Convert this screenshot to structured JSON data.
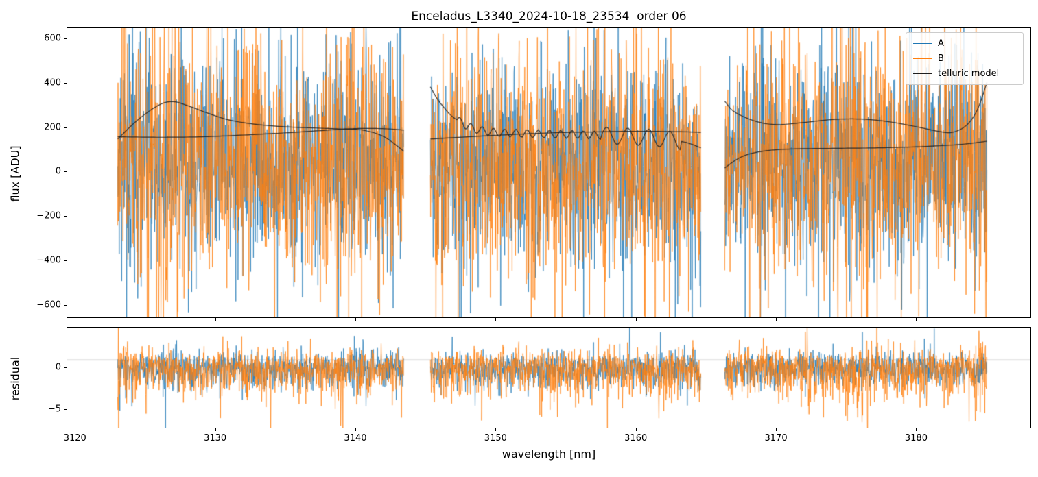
{
  "title": "Enceladus_L3340_2024-10-18_23534  order 06",
  "chart_data": {
    "type": "line",
    "title": "Enceladus_L3340_2024-10-18_23534  order 06",
    "xlabel": "wavelength [nm]",
    "xlim": [
      3119.4,
      3188.2
    ],
    "xticks": [
      3120,
      3130,
      3140,
      3150,
      3160,
      3170,
      3180
    ],
    "segments": [
      [
        3123.0,
        3143.4
      ],
      [
        3145.3,
        3164.6
      ],
      [
        3166.3,
        3185.0
      ]
    ],
    "colors": {
      "A": "#1f77b4",
      "B": "#ff7f0e",
      "telluric": "#1f1f1f",
      "refline": "#999999"
    },
    "legend": [
      {
        "label": "A",
        "color": "A"
      },
      {
        "label": "B",
        "color": "B"
      },
      {
        "label": "telluric model",
        "color": "telluric"
      }
    ],
    "legend_position": "upper right",
    "grid": false,
    "panels": {
      "flux": {
        "ylabel": "flux [ADU]",
        "ylim": [
          -660,
          650
        ],
        "yticks": [
          600,
          400,
          200,
          0,
          -200,
          -400,
          -600
        ],
        "noise": {
          "A": {
            "mean": 45,
            "std": 225,
            "tail_p": 0.06,
            "tail_mult": 2.1,
            "skew": 0,
            "seed": 12345
          },
          "B": {
            "mean": 45,
            "std": 248,
            "tail_p": 0.07,
            "tail_mult": 2.2,
            "skew": 0,
            "seed": 67890
          }
        },
        "hotspots": [
          {
            "x": 3126.0,
            "w": 1.2,
            "mult": 1.5,
            "series": "B"
          },
          {
            "x": 3140.0,
            "w": 0.8,
            "mult": 1.5,
            "series": "B"
          },
          {
            "x": 3175.8,
            "w": 0.9,
            "mult": 1.7,
            "series": "B"
          },
          {
            "x": 3184.5,
            "w": 0.6,
            "mult": 1.8,
            "series": "B"
          },
          {
            "x": 3175.3,
            "w": 0.7,
            "mult": 1.6,
            "series": "A"
          },
          {
            "x": 3124.0,
            "w": 0.8,
            "mult": 1.4,
            "series": "A"
          }
        ]
      },
      "residual": {
        "ylabel": "residual",
        "ylim": [
          -7.3,
          4.9
        ],
        "yticks": [
          0,
          -5
        ],
        "refline": 1.0,
        "noise": {
          "A": {
            "mean": 0,
            "std": 1.0,
            "tail_p": 0.05,
            "tail_mult": 2.4,
            "skew": -0.1,
            "seed": 111
          },
          "B": {
            "mean": 0,
            "std": 1.35,
            "tail_p": 0.05,
            "tail_mult": 2.5,
            "skew": -0.25,
            "seed": 222
          }
        },
        "hotspots": [
          {
            "x": 3175.9,
            "w": 0.9,
            "mult": 2.6,
            "series": "B"
          },
          {
            "x": 3123.3,
            "w": 0.5,
            "mult": 1.8,
            "series": "B"
          },
          {
            "x": 3184.6,
            "w": 0.5,
            "mult": 2.0,
            "series": "B"
          },
          {
            "x": 3140.0,
            "w": 0.7,
            "mult": 1.6,
            "series": "A"
          },
          {
            "x": 3127.0,
            "w": 1.0,
            "mult": 1.4,
            "series": "A"
          }
        ]
      }
    },
    "telluric_model": {
      "curves": [
        {
          "points": [
            [
              3123.0,
              150
            ],
            [
              3124.5,
              240
            ],
            [
              3126.0,
              305
            ],
            [
              3127.0,
              318
            ],
            [
              3128.0,
              300
            ],
            [
              3129.5,
              265
            ],
            [
              3131.0,
              235
            ],
            [
              3133.0,
              215
            ],
            [
              3135.0,
              205
            ],
            [
              3137.0,
              200
            ],
            [
              3139.0,
              195
            ],
            [
              3140.5,
              190
            ],
            [
              3142.0,
              160
            ],
            [
              3143.4,
              95
            ]
          ],
          "wiggles": []
        },
        {
          "points": [
            [
              3123.0,
              160
            ],
            [
              3126.0,
              158
            ],
            [
              3129.0,
              160
            ],
            [
              3132.0,
              168
            ],
            [
              3135.0,
              178
            ],
            [
              3137.5,
              188
            ],
            [
              3139.5,
              196
            ],
            [
              3141.0,
              198
            ],
            [
              3142.5,
              195
            ],
            [
              3143.4,
              190
            ]
          ],
          "wiggles": []
        },
        {
          "points": [
            [
              3145.3,
              385
            ],
            [
              3145.8,
              330
            ],
            [
              3146.3,
              290
            ],
            [
              3146.8,
              255
            ],
            [
              3147.5,
              225
            ],
            [
              3148.5,
              195
            ],
            [
              3150.0,
              180
            ],
            [
              3152.0,
              175
            ],
            [
              3154.0,
              172
            ],
            [
              3156.0,
              170
            ],
            [
              3158.0,
              165
            ],
            [
              3160.0,
              160
            ],
            [
              3162.0,
              150
            ],
            [
              3163.5,
              135
            ],
            [
              3164.6,
              110
            ]
          ],
          "wiggles": [
            {
              "from": 3147.2,
              "to": 3157.5,
              "amp": 18,
              "period": 0.8
            },
            {
              "from": 3157.5,
              "to": 3163.2,
              "amp": 38,
              "period": 1.5
            }
          ]
        },
        {
          "points": [
            [
              3145.3,
              150
            ],
            [
              3148.0,
              160
            ],
            [
              3151.0,
              170
            ],
            [
              3154.0,
              178
            ],
            [
              3157.0,
              182
            ],
            [
              3160.0,
              185
            ],
            [
              3163.0,
              183
            ],
            [
              3164.6,
              180
            ]
          ],
          "wiggles": []
        },
        {
          "points": [
            [
              3166.3,
              320
            ],
            [
              3167.0,
              272
            ],
            [
              3168.5,
              230
            ],
            [
              3170.0,
              215
            ],
            [
              3172.0,
              225
            ],
            [
              3174.0,
              238
            ],
            [
              3176.0,
              240
            ],
            [
              3178.0,
              228
            ],
            [
              3180.0,
              205
            ],
            [
              3181.5,
              185
            ],
            [
              3182.5,
              180
            ],
            [
              3183.5,
              210
            ],
            [
              3184.3,
              280
            ],
            [
              3185.0,
              405
            ]
          ],
          "wiggles": []
        },
        {
          "points": [
            [
              3166.3,
              20
            ],
            [
              3167.5,
              70
            ],
            [
              3169.0,
              95
            ],
            [
              3171.0,
              105
            ],
            [
              3174.0,
              108
            ],
            [
              3177.0,
              110
            ],
            [
              3180.0,
              115
            ],
            [
              3183.0,
              125
            ],
            [
              3185.0,
              140
            ]
          ],
          "wiggles": []
        }
      ]
    }
  }
}
